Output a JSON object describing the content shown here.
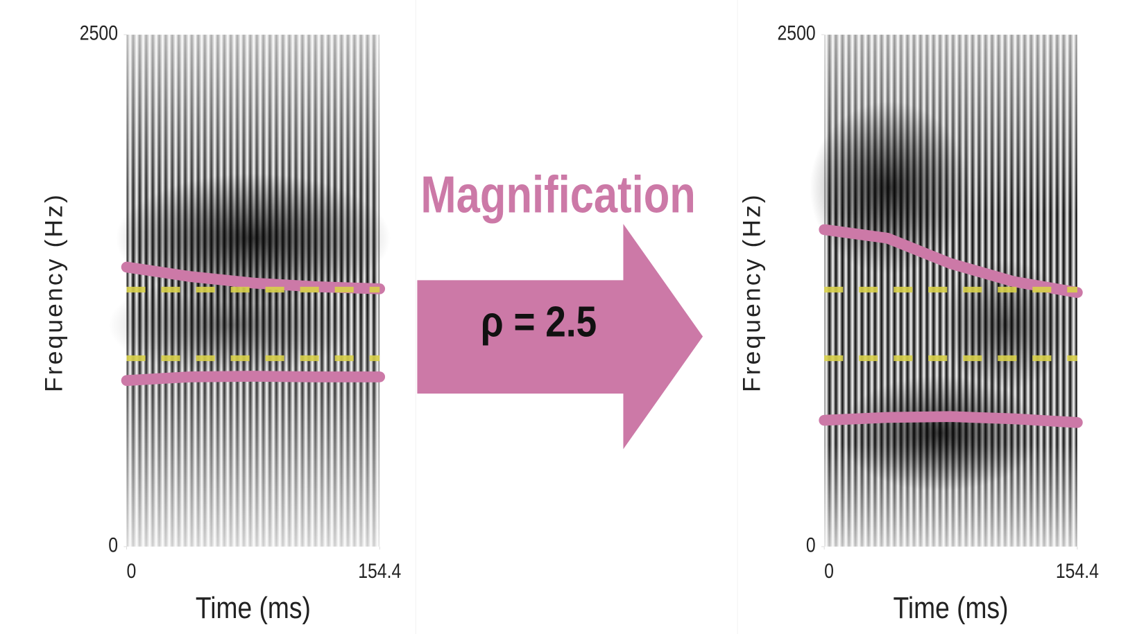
{
  "chart_data": [
    {
      "type": "line",
      "xlabel": "Time (ms)",
      "ylabel": "Frequency (Hz)",
      "xlim": [
        0,
        154.4
      ],
      "ylim": [
        0,
        2500
      ],
      "xticks": [
        0,
        154.4
      ],
      "yticks": [
        0,
        2500
      ],
      "x": [
        0,
        38.6,
        77.2,
        115.8,
        154.4
      ],
      "series": [
        {
          "color": "#cc79a7",
          "style": "solid",
          "values": [
            1365,
            1319,
            1287,
            1269,
            1259
          ]
        },
        {
          "color": "#cc79a7",
          "style": "solid",
          "values": [
            811,
            829,
            832,
            829,
            829
          ]
        },
        {
          "color": "#d8d04a",
          "style": "dashed",
          "values": [
            1255,
            1255,
            1255,
            1255,
            1255
          ]
        },
        {
          "color": "#d8d04a",
          "style": "dashed",
          "values": [
            920,
            920,
            920,
            920,
            920
          ]
        }
      ]
    },
    {
      "type": "line",
      "xlabel": "Time (ms)",
      "ylabel": "Frequency (Hz)",
      "xlim": [
        0,
        154.4
      ],
      "ylim": [
        0,
        2500
      ],
      "xticks": [
        0,
        154.4
      ],
      "yticks": [
        0,
        2500
      ],
      "x": [
        0,
        38.6,
        77.2,
        115.8,
        154.4
      ],
      "series": [
        {
          "color": "#cc79a7",
          "style": "solid",
          "values": [
            1548,
            1506,
            1382,
            1294,
            1241
          ]
        },
        {
          "color": "#cc79a7",
          "style": "solid",
          "values": [
            617,
            631,
            635,
            624,
            606
          ]
        },
        {
          "color": "#d8d04a",
          "style": "dashed",
          "values": [
            1255,
            1255,
            1255,
            1255,
            1255
          ]
        },
        {
          "color": "#d8d04a",
          "style": "dashed",
          "values": [
            920,
            920,
            920,
            920,
            920
          ]
        }
      ]
    }
  ],
  "arrow": {
    "title": "Magnification",
    "text": "ρ = 2.5"
  }
}
